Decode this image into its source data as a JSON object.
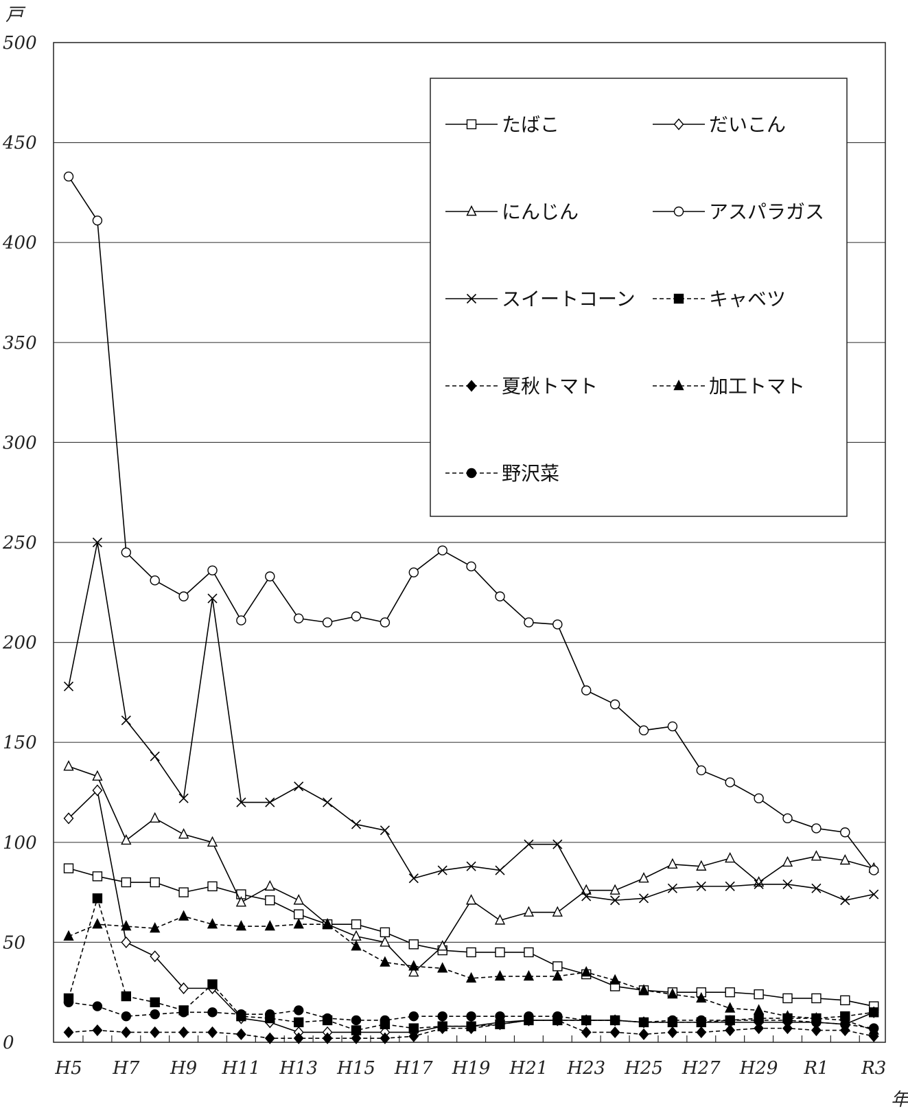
{
  "chart_data": {
    "type": "line",
    "ylabel": "戸",
    "xlabel": "年",
    "ylim": [
      0,
      500
    ],
    "yticks": [
      0,
      50,
      100,
      150,
      200,
      250,
      300,
      350,
      400,
      450,
      500
    ],
    "grid": "horizontal",
    "legend_position": "top-right",
    "x": [
      "H5",
      "H6",
      "H7",
      "H8",
      "H9",
      "H10",
      "H11",
      "H12",
      "H13",
      "H14",
      "H15",
      "H16",
      "H17",
      "H18",
      "H19",
      "H20",
      "H21",
      "H22",
      "H23",
      "H24",
      "H25",
      "H26",
      "H27",
      "H28",
      "H29",
      "H30",
      "R1",
      "R2",
      "R3"
    ],
    "xtick_labels": [
      "H5",
      "H7",
      "H9",
      "H11",
      "H13",
      "H15",
      "H17",
      "H19",
      "H21",
      "H23",
      "H25",
      "H27",
      "H29",
      "R1",
      "R3"
    ],
    "series": [
      {
        "name": "たばこ",
        "marker": "square-open",
        "dash": "solid",
        "values": [
          87,
          83,
          80,
          80,
          75,
          78,
          74,
          71,
          64,
          59,
          59,
          55,
          49,
          46,
          45,
          45,
          45,
          38,
          34,
          28,
          26,
          25,
          25,
          25,
          24,
          22,
          22,
          21,
          18
        ]
      },
      {
        "name": "だいこん",
        "marker": "diamond-open",
        "dash": "solid",
        "values": [
          112,
          126,
          50,
          43,
          27,
          27,
          12,
          10,
          5,
          5,
          5,
          5,
          5,
          8,
          8,
          10,
          11,
          11,
          11,
          11,
          10,
          10,
          10,
          10,
          10,
          10,
          10,
          9,
          15
        ]
      },
      {
        "name": "にんじん",
        "marker": "triangle-open",
        "dash": "solid",
        "values": [
          138,
          133,
          101,
          112,
          104,
          100,
          70,
          78,
          71,
          59,
          53,
          50,
          35,
          48,
          71,
          61,
          65,
          65,
          76,
          76,
          82,
          89,
          88,
          92,
          80,
          90,
          93,
          91,
          87
        ]
      },
      {
        "name": "アスパラガス",
        "marker": "circle-open",
        "dash": "solid",
        "values": [
          433,
          411,
          245,
          231,
          223,
          236,
          211,
          233,
          212,
          210,
          213,
          210,
          235,
          246,
          238,
          223,
          210,
          209,
          176,
          169,
          156,
          158,
          136,
          130,
          122,
          112,
          107,
          105,
          86
        ]
      },
      {
        "name": "スイートコーン",
        "marker": "x",
        "dash": "solid",
        "values": [
          178,
          250,
          161,
          143,
          122,
          222,
          120,
          120,
          128,
          120,
          109,
          106,
          82,
          86,
          88,
          86,
          99,
          99,
          73,
          71,
          72,
          77,
          78,
          78,
          79,
          79,
          77,
          71,
          74
        ]
      },
      {
        "name": "キャベツ",
        "marker": "square-filled",
        "dash": "dashed",
        "values": [
          22,
          72,
          23,
          20,
          16,
          29,
          13,
          12,
          10,
          11,
          6,
          9,
          7,
          8,
          8,
          9,
          11,
          11,
          11,
          11,
          10,
          10,
          10,
          11,
          12,
          12,
          12,
          13,
          15
        ]
      },
      {
        "name": "夏秋トマト",
        "marker": "diamond-filled",
        "dash": "dashed",
        "values": [
          5,
          6,
          5,
          5,
          5,
          5,
          4,
          2,
          2,
          2,
          2,
          2,
          3,
          7,
          7,
          9,
          11,
          11,
          5,
          5,
          4,
          5,
          5,
          6,
          7,
          7,
          6,
          6,
          3
        ]
      },
      {
        "name": "加工トマト",
        "marker": "triangle-filled",
        "dash": "dashed",
        "values": [
          53,
          59,
          58,
          57,
          63,
          59,
          58,
          58,
          59,
          59,
          48,
          40,
          38,
          37,
          32,
          33,
          33,
          33,
          35,
          31,
          26,
          24,
          22,
          17,
          16,
          13,
          12,
          11,
          6
        ]
      },
      {
        "name": "野沢菜",
        "marker": "circle-filled",
        "dash": "dashed",
        "values": [
          20,
          18,
          13,
          14,
          15,
          15,
          14,
          14,
          16,
          12,
          11,
          11,
          13,
          13,
          13,
          13,
          13,
          13,
          11,
          11,
          10,
          11,
          11,
          11,
          11,
          11,
          10,
          9,
          7
        ]
      }
    ]
  }
}
